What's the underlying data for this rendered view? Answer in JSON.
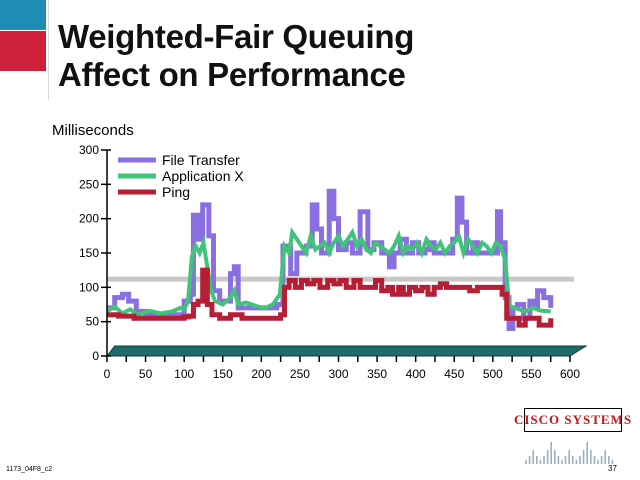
{
  "slide": {
    "title_line1": "Weighted-Fair Queuing",
    "title_line2": "Affect on Performance",
    "footer_code": "1173_04F8_c2",
    "page_number": "37",
    "logo_text": "CISCO SYSTEMS"
  },
  "colors": {
    "accent_teal": "#1e8cb4",
    "accent_red": "#d0213a",
    "file_transfer": "#8a6fe0",
    "application_x": "#3fc47a",
    "ping": "#b51f35",
    "reference_line": "#c8c8c8",
    "base_bar": "#1f6b6b"
  },
  "chart_data": {
    "type": "line",
    "ylabel": "Milliseconds",
    "xlabel": "",
    "xlim": [
      0,
      600
    ],
    "ylim": [
      0,
      300
    ],
    "x_ticks": [
      0,
      50,
      100,
      150,
      200,
      250,
      300,
      350,
      400,
      450,
      500,
      550,
      600
    ],
    "y_ticks": [
      0,
      50,
      100,
      150,
      200,
      250,
      300
    ],
    "reference_y": 112,
    "grid": false,
    "legend_position": "top-left",
    "series": [
      {
        "name": "File Transfer",
        "color": "#8a6fe0",
        "step": true,
        "points": [
          [
            0,
            70
          ],
          [
            10,
            85
          ],
          [
            20,
            90
          ],
          [
            28,
            80
          ],
          [
            38,
            65
          ],
          [
            50,
            60
          ],
          [
            65,
            60
          ],
          [
            85,
            60
          ],
          [
            100,
            80
          ],
          [
            108,
            90
          ],
          [
            112,
            205
          ],
          [
            118,
            170
          ],
          [
            124,
            220
          ],
          [
            132,
            175
          ],
          [
            138,
            95
          ],
          [
            146,
            80
          ],
          [
            152,
            80
          ],
          [
            160,
            120
          ],
          [
            165,
            130
          ],
          [
            170,
            70
          ],
          [
            180,
            70
          ],
          [
            210,
            70
          ],
          [
            220,
            75
          ],
          [
            228,
            160
          ],
          [
            238,
            120
          ],
          [
            246,
            150
          ],
          [
            258,
            160
          ],
          [
            266,
            220
          ],
          [
            272,
            185
          ],
          [
            278,
            150
          ],
          [
            288,
            240
          ],
          [
            294,
            200
          ],
          [
            300,
            155
          ],
          [
            310,
            165
          ],
          [
            318,
            150
          ],
          [
            328,
            210
          ],
          [
            338,
            155
          ],
          [
            346,
            165
          ],
          [
            356,
            150
          ],
          [
            366,
            130
          ],
          [
            372,
            150
          ],
          [
            380,
            170
          ],
          [
            388,
            150
          ],
          [
            396,
            165
          ],
          [
            404,
            150
          ],
          [
            412,
            155
          ],
          [
            418,
            165
          ],
          [
            424,
            150
          ],
          [
            432,
            150
          ],
          [
            440,
            150
          ],
          [
            448,
            170
          ],
          [
            454,
            230
          ],
          [
            460,
            195
          ],
          [
            466,
            150
          ],
          [
            474,
            165
          ],
          [
            480,
            150
          ],
          [
            494,
            150
          ],
          [
            500,
            150
          ],
          [
            506,
            210
          ],
          [
            510,
            165
          ],
          [
            516,
            85
          ],
          [
            521,
            40
          ],
          [
            526,
            70
          ],
          [
            532,
            75
          ],
          [
            540,
            55
          ],
          [
            548,
            80
          ],
          [
            552,
            70
          ],
          [
            558,
            95
          ],
          [
            566,
            85
          ],
          [
            575,
            70
          ]
        ]
      },
      {
        "name": "Application X",
        "color": "#3fc47a",
        "step": false,
        "points": [
          [
            0,
            65
          ],
          [
            10,
            72
          ],
          [
            20,
            62
          ],
          [
            30,
            68
          ],
          [
            40,
            60
          ],
          [
            55,
            66
          ],
          [
            70,
            62
          ],
          [
            85,
            65
          ],
          [
            95,
            70
          ],
          [
            100,
            68
          ],
          [
            105,
            80
          ],
          [
            110,
            145
          ],
          [
            115,
            160
          ],
          [
            120,
            150
          ],
          [
            125,
            165
          ],
          [
            130,
            130
          ],
          [
            135,
            95
          ],
          [
            140,
            80
          ],
          [
            150,
            75
          ],
          [
            160,
            85
          ],
          [
            165,
            95
          ],
          [
            170,
            75
          ],
          [
            180,
            78
          ],
          [
            195,
            72
          ],
          [
            205,
            70
          ],
          [
            215,
            75
          ],
          [
            224,
            90
          ],
          [
            230,
            160
          ],
          [
            236,
            150
          ],
          [
            240,
            180
          ],
          [
            246,
            170
          ],
          [
            252,
            160
          ],
          [
            258,
            150
          ],
          [
            264,
            175
          ],
          [
            270,
            155
          ],
          [
            276,
            160
          ],
          [
            282,
            165
          ],
          [
            288,
            150
          ],
          [
            294,
            165
          ],
          [
            300,
            175
          ],
          [
            306,
            160
          ],
          [
            312,
            170
          ],
          [
            318,
            180
          ],
          [
            324,
            160
          ],
          [
            330,
            170
          ],
          [
            336,
            155
          ],
          [
            342,
            150
          ],
          [
            348,
            165
          ],
          [
            354,
            160
          ],
          [
            360,
            155
          ],
          [
            366,
            150
          ],
          [
            372,
            160
          ],
          [
            378,
            175
          ],
          [
            384,
            150
          ],
          [
            390,
            160
          ],
          [
            396,
            155
          ],
          [
            402,
            165
          ],
          [
            408,
            150
          ],
          [
            414,
            170
          ],
          [
            420,
            160
          ],
          [
            426,
            155
          ],
          [
            432,
            165
          ],
          [
            438,
            150
          ],
          [
            444,
            160
          ],
          [
            450,
            165
          ],
          [
            456,
            175
          ],
          [
            462,
            150
          ],
          [
            468,
            170
          ],
          [
            474,
            160
          ],
          [
            480,
            150
          ],
          [
            486,
            165
          ],
          [
            492,
            160
          ],
          [
            498,
            150
          ],
          [
            504,
            165
          ],
          [
            510,
            160
          ],
          [
            516,
            140
          ],
          [
            521,
            75
          ],
          [
            526,
            70
          ],
          [
            534,
            68
          ],
          [
            542,
            65
          ],
          [
            552,
            70
          ],
          [
            562,
            66
          ],
          [
            575,
            65
          ]
        ]
      },
      {
        "name": "Ping",
        "color": "#b51f35",
        "step": true,
        "points": [
          [
            0,
            60
          ],
          [
            15,
            58
          ],
          [
            35,
            55
          ],
          [
            60,
            55
          ],
          [
            85,
            55
          ],
          [
            100,
            57
          ],
          [
            106,
            58
          ],
          [
            112,
            75
          ],
          [
            118,
            80
          ],
          [
            124,
            125
          ],
          [
            130,
            75
          ],
          [
            136,
            60
          ],
          [
            146,
            55
          ],
          [
            160,
            60
          ],
          [
            166,
            60
          ],
          [
            175,
            55
          ],
          [
            195,
            55
          ],
          [
            215,
            55
          ],
          [
            225,
            60
          ],
          [
            230,
            100
          ],
          [
            236,
            110
          ],
          [
            244,
            100
          ],
          [
            252,
            110
          ],
          [
            260,
            105
          ],
          [
            268,
            110
          ],
          [
            276,
            100
          ],
          [
            286,
            110
          ],
          [
            294,
            105
          ],
          [
            302,
            110
          ],
          [
            310,
            100
          ],
          [
            320,
            110
          ],
          [
            328,
            100
          ],
          [
            340,
            100
          ],
          [
            348,
            110
          ],
          [
            356,
            95
          ],
          [
            364,
            100
          ],
          [
            370,
            90
          ],
          [
            378,
            100
          ],
          [
            384,
            90
          ],
          [
            392,
            100
          ],
          [
            400,
            95
          ],
          [
            408,
            100
          ],
          [
            416,
            90
          ],
          [
            424,
            100
          ],
          [
            432,
            105
          ],
          [
            440,
            100
          ],
          [
            450,
            100
          ],
          [
            460,
            100
          ],
          [
            470,
            95
          ],
          [
            480,
            100
          ],
          [
            495,
            100
          ],
          [
            505,
            100
          ],
          [
            512,
            90
          ],
          [
            518,
            55
          ],
          [
            526,
            55
          ],
          [
            534,
            45
          ],
          [
            542,
            55
          ],
          [
            550,
            55
          ],
          [
            560,
            45
          ],
          [
            566,
            45
          ],
          [
            575,
            55
          ]
        ]
      }
    ]
  }
}
